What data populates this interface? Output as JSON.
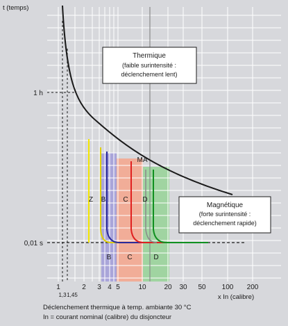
{
  "axes": {
    "y_title": "t (temps)",
    "x_title": "x In (calibre)",
    "y_ticks": [
      "1 h",
      "0,01 s"
    ],
    "x_ticks": [
      "1",
      "2",
      "3",
      "4",
      "5",
      "10",
      "20",
      "30",
      "50",
      "100",
      "200"
    ],
    "x_small_ticks": [
      "1,3",
      "1,45"
    ]
  },
  "regions": {
    "thermal": {
      "title": "Thermique",
      "line1": "(faible surintensité :",
      "line2": "déclenchement lent)"
    },
    "magnetic": {
      "title": "Magnétique",
      "line1": "(forte surintensité :",
      "line2": "déclenchement rapide)"
    }
  },
  "curve_labels": {
    "ma": "MA",
    "z": "Z",
    "b_curve": "B",
    "c_curve": "C",
    "d_curve": "D",
    "band_b": "B",
    "band_c": "C",
    "band_d": "D"
  },
  "footnote": {
    "line1": "Déclenchement thermique à temp. ambiante 30 °C",
    "line2": "In = courant nominal (calibre) du disjoncteur"
  },
  "colors": {
    "background": "#d7d8dc",
    "grid": "#ffffff",
    "thermal_curve": "#1a1a1a",
    "z": "#f4e600",
    "b": "#2a2a9a",
    "b_band": "#a4a0d8",
    "c": "#e02020",
    "c_band": "#f4a890",
    "d": "#109020",
    "d_band": "#9ad49a",
    "ma": "#8a8a8a",
    "box_bg": "#ffffff"
  }
}
